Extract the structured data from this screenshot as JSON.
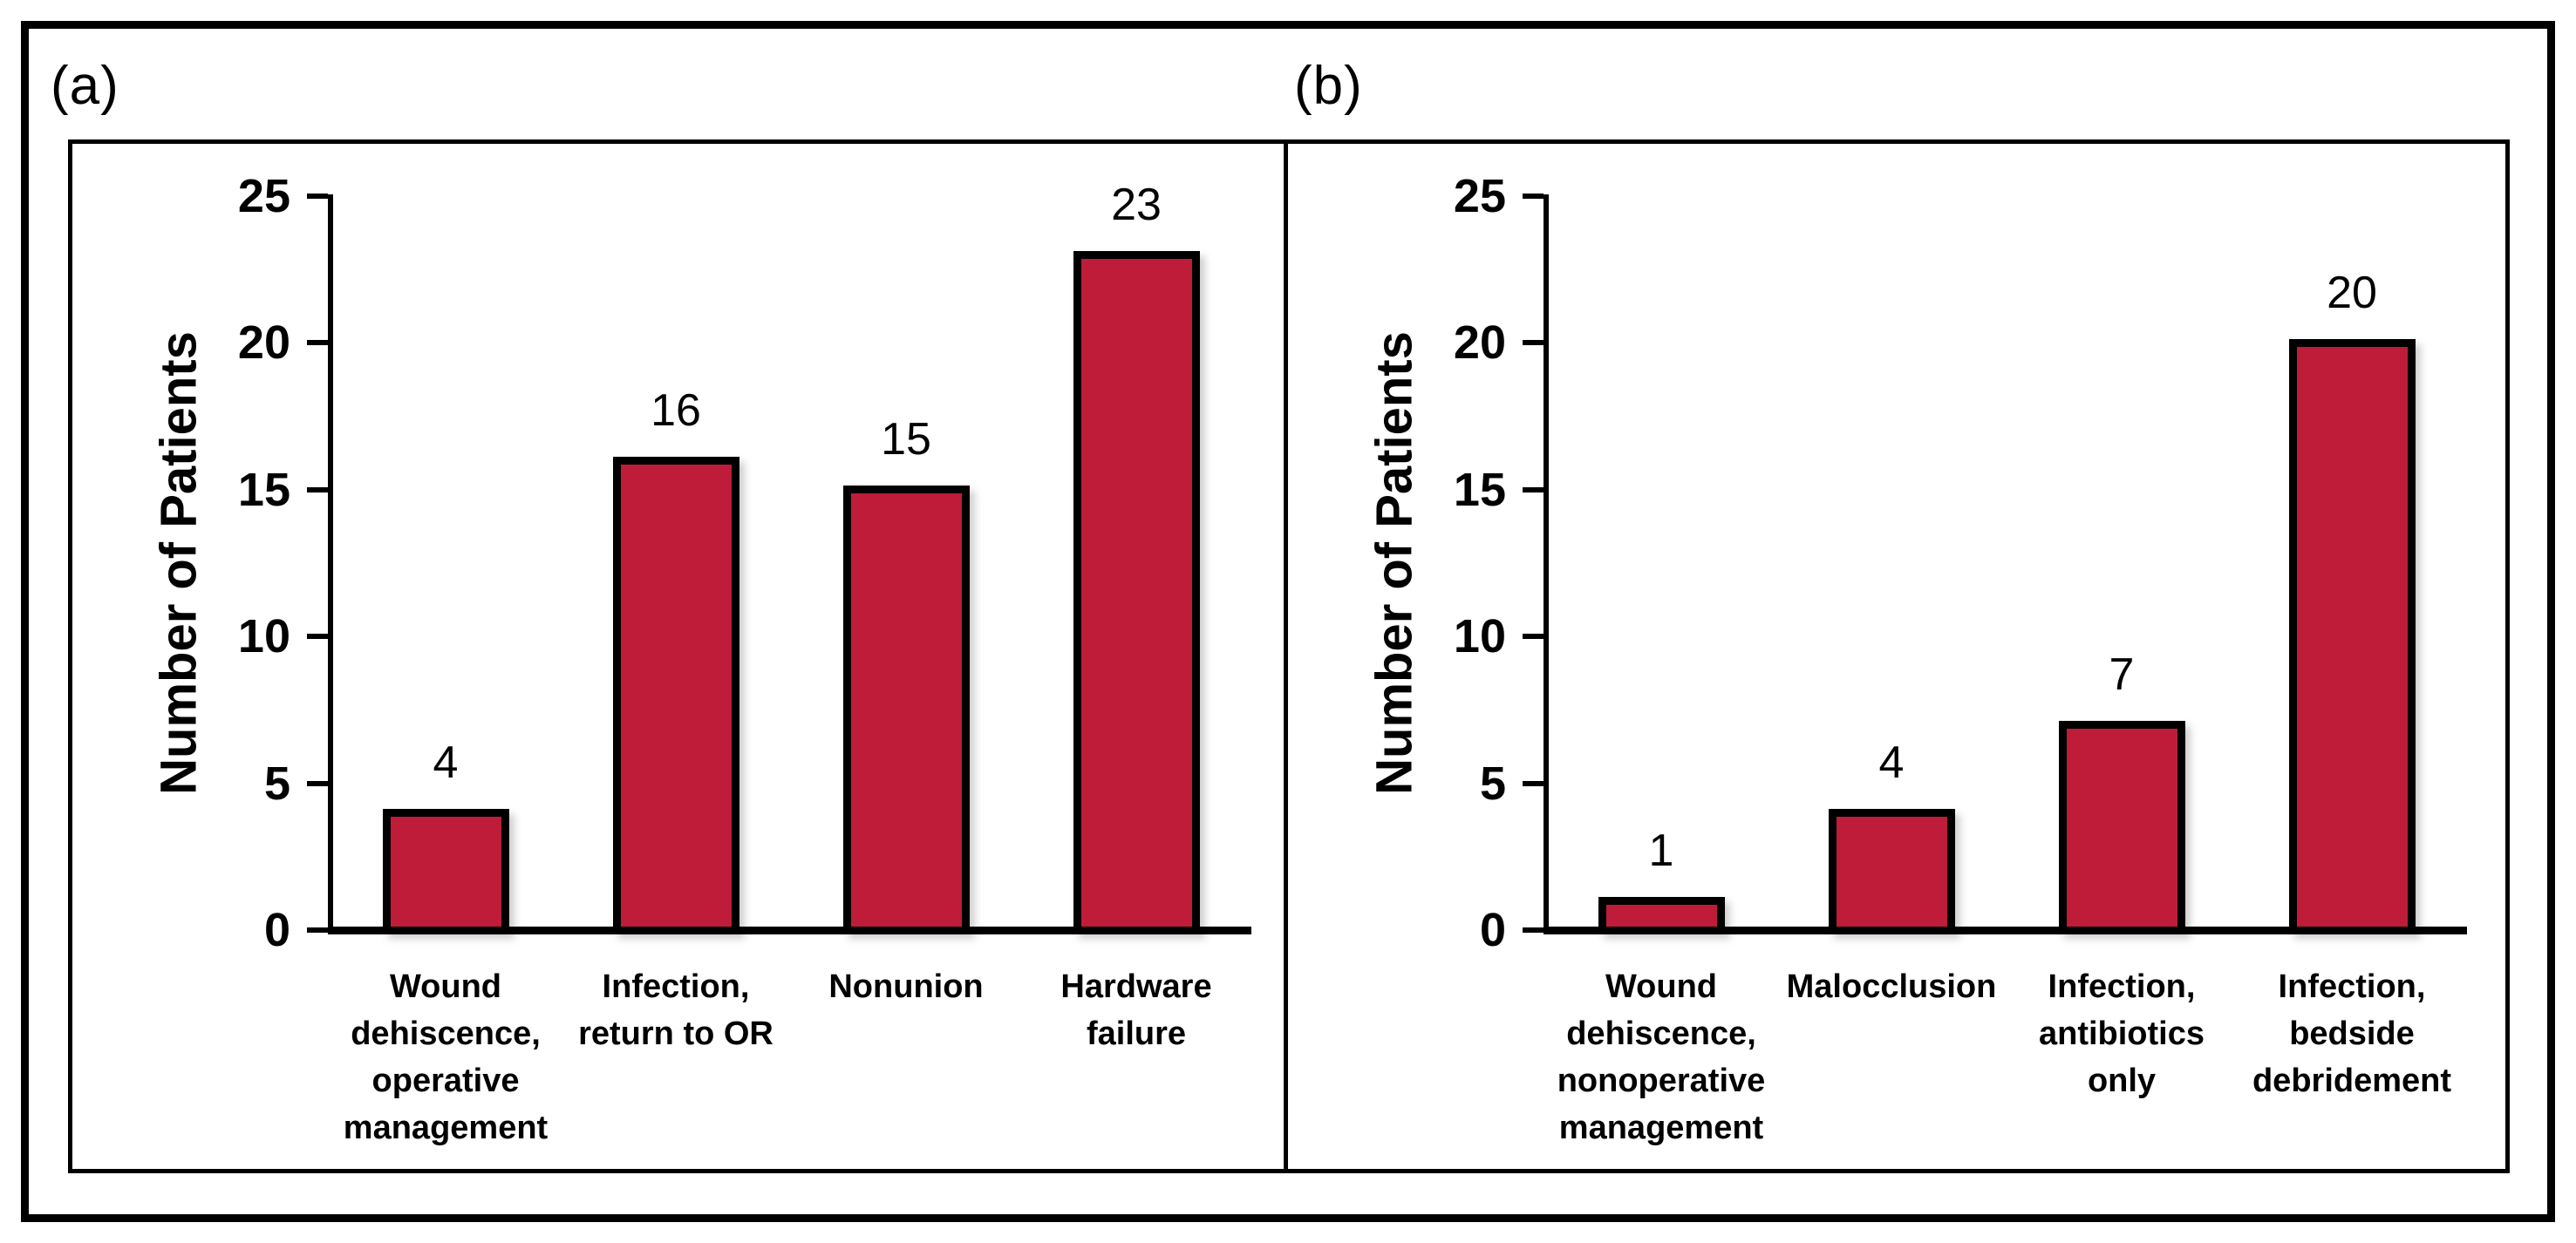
{
  "panel_labels": [
    "(a)",
    "(b)"
  ],
  "colors": {
    "bar_fill": "#BE1C39",
    "ink": "#000000",
    "background": "#FFFFFF"
  },
  "chart_data": [
    {
      "type": "bar",
      "panel": "(a)",
      "title": "",
      "xlabel": "",
      "ylabel": "Number of Patients",
      "ylim": [
        0,
        25
      ],
      "yticks": [
        0,
        5,
        10,
        15,
        20,
        25
      ],
      "grid": false,
      "legend_position": "none",
      "categories": [
        "Wound dehiscence, operative management",
        "Infection, return to OR",
        "Nonunion",
        "Hardware failure"
      ],
      "category_lines": [
        [
          "Wound",
          "dehiscence,",
          "operative",
          "management"
        ],
        [
          "Infection,",
          "return to OR"
        ],
        [
          "Nonunion"
        ],
        [
          "Hardware",
          "failure"
        ]
      ],
      "values": [
        4,
        16,
        15,
        23
      ],
      "bar_labels": [
        "4",
        "16",
        "15",
        "23"
      ]
    },
    {
      "type": "bar",
      "panel": "(b)",
      "title": "",
      "xlabel": "",
      "ylabel": "Number of Patients",
      "ylim": [
        0,
        25
      ],
      "yticks": [
        0,
        5,
        10,
        15,
        20,
        25
      ],
      "grid": false,
      "legend_position": "none",
      "categories": [
        "Wound dehiscence, nonoperative management",
        "Malocclusion",
        "Infection, antibiotics only",
        "Infection, bedside debridement"
      ],
      "category_lines": [
        [
          "Wound",
          "dehiscence,",
          "nonoperative",
          "management"
        ],
        [
          "Malocclusion"
        ],
        [
          "Infection,",
          "antibiotics",
          "only"
        ],
        [
          "Infection,",
          "bedside",
          "debridement"
        ]
      ],
      "values": [
        1,
        4,
        7,
        20
      ],
      "bar_labels": [
        "1",
        "4",
        "7",
        "20"
      ]
    }
  ]
}
